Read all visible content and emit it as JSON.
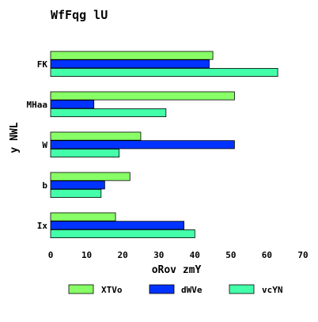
{
  "chart_data": {
    "type": "bar",
    "orientation": "horizontal",
    "title": "WfFqg lU",
    "xlabel": "oRov zmY",
    "ylabel": "y NWL",
    "categories": [
      "FK",
      "MHaa",
      "W",
      "b",
      "Ix"
    ],
    "xlim": [
      0,
      70
    ],
    "xticks": [
      0,
      10,
      20,
      30,
      40,
      50,
      60,
      70
    ],
    "grid": false,
    "legend_position": "bottom",
    "series": [
      {
        "name": "XTVo",
        "color": "#88ff66",
        "values": [
          45,
          51,
          25,
          22,
          18
        ]
      },
      {
        "name": "dWVe",
        "color": "#0033ff",
        "values": [
          44,
          12,
          51,
          15,
          37
        ]
      },
      {
        "name": "vcYN",
        "color": "#44ffaa",
        "values": [
          63,
          32,
          19,
          14,
          40
        ]
      }
    ]
  }
}
